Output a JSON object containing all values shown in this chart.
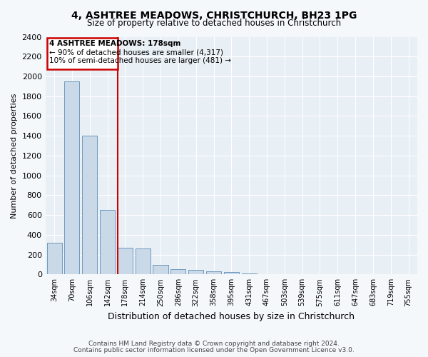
{
  "title": "4, ASHTREE MEADOWS, CHRISTCHURCH, BH23 1PG",
  "subtitle": "Size of property relative to detached houses in Christchurch",
  "xlabel": "Distribution of detached houses by size in Christchurch",
  "ylabel": "Number of detached properties",
  "categories": [
    "34sqm",
    "70sqm",
    "106sqm",
    "142sqm",
    "178sqm",
    "214sqm",
    "250sqm",
    "286sqm",
    "322sqm",
    "358sqm",
    "395sqm",
    "431sqm",
    "467sqm",
    "503sqm",
    "539sqm",
    "575sqm",
    "611sqm",
    "647sqm",
    "683sqm",
    "719sqm",
    "755sqm"
  ],
  "values": [
    320,
    1950,
    1400,
    650,
    270,
    265,
    95,
    50,
    42,
    32,
    22,
    12,
    5,
    3,
    2,
    1,
    1,
    0,
    0,
    0,
    0
  ],
  "bar_color": "#c9d9e8",
  "bar_edge_color": "#5b8db8",
  "highlight_index": 4,
  "highlight_line_color": "#cc0000",
  "ylim": [
    0,
    2400
  ],
  "yticks": [
    0,
    200,
    400,
    600,
    800,
    1000,
    1200,
    1400,
    1600,
    1800,
    2000,
    2200,
    2400
  ],
  "annotation_title": "4 ASHTREE MEADOWS: 178sqm",
  "annotation_line1": "← 90% of detached houses are smaller (4,317)",
  "annotation_line2": "10% of semi-detached houses are larger (481) →",
  "annotation_box_color": "#cc0000",
  "footer_line1": "Contains HM Land Registry data © Crown copyright and database right 2024.",
  "footer_line2": "Contains public sector information licensed under the Open Government Licence v3.0.",
  "background_color": "#f5f8fb",
  "plot_bg_color": "#e8eff5"
}
